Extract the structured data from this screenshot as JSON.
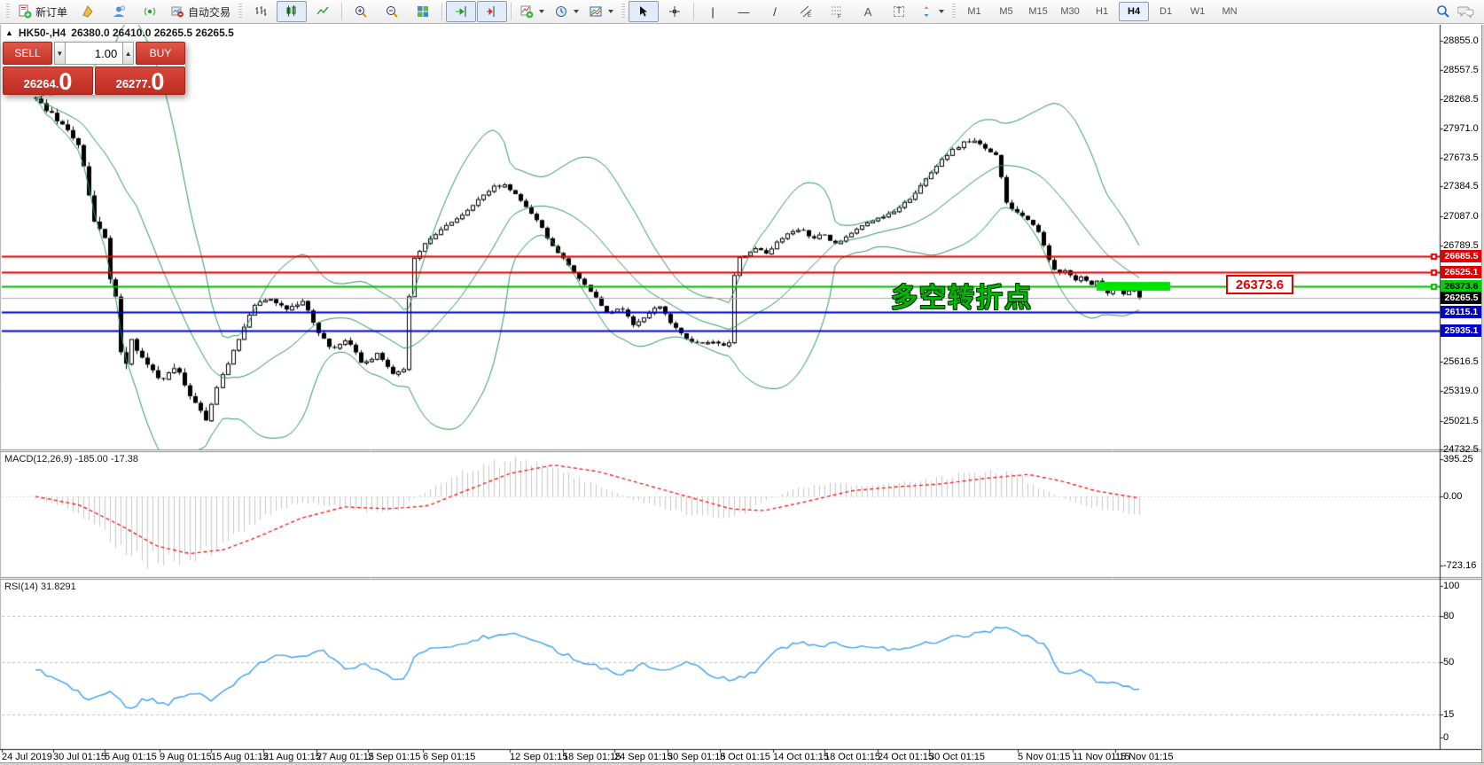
{
  "toolbar": {
    "new_order": "新订单",
    "autotrading": "自动交易",
    "timeframes": [
      "M1",
      "M5",
      "M15",
      "M30",
      "H1",
      "H4",
      "D1",
      "W1",
      "MN"
    ],
    "active_timeframe": "H4"
  },
  "trade_panel": {
    "collapse_icon": "▲",
    "sell_label": "SELL",
    "buy_label": "BUY",
    "volume": "1.00",
    "sell_price": "26264.0",
    "buy_price": "26277.0"
  },
  "chart_header": {
    "symbol": "HK50-,H4",
    "ohlc": "26380.0 26410.0 26265.5 26265.5"
  },
  "annotation": {
    "text": "多空转折点",
    "color": "#00b400"
  },
  "callout": {
    "text": "26373.6"
  },
  "price_axis": {
    "ticks": [
      "28855.0",
      "28557.5",
      "28268.5",
      "27971.0",
      "27673.5",
      "27384.5",
      "27087.0",
      "26789.5",
      "25616.5",
      "25319.0",
      "25021.5",
      "24732.5"
    ],
    "badges": [
      {
        "text": "26685.5",
        "bg": "#e00000",
        "fg": "#ffffff"
      },
      {
        "text": "26525.1",
        "bg": "#e00000",
        "fg": "#ffffff"
      },
      {
        "text": "26373.6",
        "bg": "#00ce00",
        "fg": "#000000"
      },
      {
        "text": "26265.5",
        "bg": "#000000",
        "fg": "#ffffff"
      },
      {
        "text": "26115.1",
        "bg": "#0000d0",
        "fg": "#ffffff"
      },
      {
        "text": "25935.1",
        "bg": "#0000d0",
        "fg": "#ffffff"
      }
    ]
  },
  "macd_panel": {
    "label": "MACD(12,26,9) -185.00 -17.38",
    "scale": [
      "395.25",
      "0.00",
      "-723.16"
    ]
  },
  "rsi_panel": {
    "label": "RSI(14) 31.8291",
    "scale": [
      "100",
      "80",
      "50",
      "15",
      "0"
    ]
  },
  "time_axis": {
    "labels": [
      [
        "24 Jul 2019",
        2
      ],
      [
        "30 Jul 01:15",
        60
      ],
      [
        "5 Aug 01:15",
        118
      ],
      [
        "9 Aug 01:15",
        180
      ],
      [
        "15 Aug 01:15",
        238
      ],
      [
        "21 Aug 01:15",
        297
      ],
      [
        "27 Aug 01:15",
        357
      ],
      [
        "2 Sep 01:15",
        415
      ],
      [
        "6 Sep 01:15",
        477
      ],
      [
        "12 Sep 01:15",
        575
      ],
      [
        "18 Sep 01:15",
        635
      ],
      [
        "24 Sep 01:15",
        693
      ],
      [
        "30 Sep 01:15",
        753
      ],
      [
        "8 Oct 01:15",
        812
      ],
      [
        "14 Oct 01:15",
        872
      ],
      [
        "18 Oct 01:15",
        930
      ],
      [
        "24 Oct 01:15",
        990
      ],
      [
        "30 Oct 01:15",
        1048
      ],
      [
        "5 Nov 01:15",
        1148
      ],
      [
        "11 Nov 01:15",
        1210
      ],
      [
        "15 Nov 01:15",
        1258
      ]
    ]
  },
  "chart_data": {
    "type": "candlestick",
    "symbol": "HK50-",
    "timeframe": "H4",
    "ohlc": {
      "open": 26380.0,
      "high": 26410.0,
      "low": 26265.5,
      "close": 26265.5
    },
    "bid": 26264.0,
    "ask": 26277.0,
    "y_range": [
      24732.5,
      28855.0
    ],
    "candles_count": 208,
    "levels": [
      {
        "price": 26685.5,
        "color": "#e60000",
        "width": 2,
        "marker": true
      },
      {
        "price": 26525.1,
        "color": "#e60000",
        "width": 2,
        "marker": true
      },
      {
        "price": 26373.6,
        "color": "#00bb00",
        "width": 2,
        "marker": true
      },
      {
        "price": 26265.5,
        "color": "#aaaaaa",
        "width": 1,
        "marker": false
      },
      {
        "price": 26115.1,
        "color": "#0000d8",
        "width": 2,
        "marker": false
      },
      {
        "price": 25935.1,
        "color": "#0000d8",
        "width": 2,
        "marker": false
      }
    ],
    "highlight_segment": {
      "price": 26373.6,
      "color": "#00e400"
    },
    "bollinger": {
      "period": 20,
      "deviation": 2,
      "color": "#2E9B57"
    },
    "price_waypoints": [
      [
        0,
        28260
      ],
      [
        0.014,
        28120
      ],
      [
        0.028,
        27950
      ],
      [
        0.04,
        27800
      ],
      [
        0.047,
        27350
      ],
      [
        0.054,
        27000
      ],
      [
        0.062,
        26950
      ],
      [
        0.068,
        26420
      ],
      [
        0.073,
        26240
      ],
      [
        0.079,
        25480
      ],
      [
        0.087,
        25840
      ],
      [
        0.099,
        25610
      ],
      [
        0.113,
        25430
      ],
      [
        0.127,
        25570
      ],
      [
        0.141,
        25250
      ],
      [
        0.155,
        25030
      ],
      [
        0.167,
        25440
      ],
      [
        0.181,
        25790
      ],
      [
        0.196,
        26170
      ],
      [
        0.212,
        26260
      ],
      [
        0.228,
        26150
      ],
      [
        0.243,
        26230
      ],
      [
        0.254,
        25950
      ],
      [
        0.268,
        25730
      ],
      [
        0.282,
        25860
      ],
      [
        0.296,
        25590
      ],
      [
        0.31,
        25700
      ],
      [
        0.324,
        25500
      ],
      [
        0.334,
        25560
      ],
      [
        0.34,
        26600
      ],
      [
        0.35,
        26780
      ],
      [
        0.362,
        26900
      ],
      [
        0.376,
        27020
      ],
      [
        0.39,
        27140
      ],
      [
        0.404,
        27280
      ],
      [
        0.416,
        27390
      ],
      [
        0.425,
        27400
      ],
      [
        0.435,
        27300
      ],
      [
        0.447,
        27150
      ],
      [
        0.459,
        26960
      ],
      [
        0.47,
        26760
      ],
      [
        0.482,
        26600
      ],
      [
        0.494,
        26450
      ],
      [
        0.506,
        26280
      ],
      [
        0.517,
        26100
      ],
      [
        0.529,
        26180
      ],
      [
        0.541,
        25990
      ],
      [
        0.553,
        26080
      ],
      [
        0.564,
        26190
      ],
      [
        0.576,
        25990
      ],
      [
        0.588,
        25860
      ],
      [
        0.6,
        25800
      ],
      [
        0.611,
        25830
      ],
      [
        0.623,
        25780
      ],
      [
        0.628,
        25820
      ],
      [
        0.634,
        26640
      ],
      [
        0.644,
        26700
      ],
      [
        0.654,
        26780
      ],
      [
        0.663,
        26690
      ],
      [
        0.672,
        26840
      ],
      [
        0.682,
        26920
      ],
      [
        0.694,
        26960
      ],
      [
        0.703,
        26840
      ],
      [
        0.713,
        26910
      ],
      [
        0.724,
        26800
      ],
      [
        0.735,
        26880
      ],
      [
        0.748,
        26990
      ],
      [
        0.76,
        27060
      ],
      [
        0.771,
        27100
      ],
      [
        0.782,
        27160
      ],
      [
        0.795,
        27300
      ],
      [
        0.807,
        27480
      ],
      [
        0.818,
        27610
      ],
      [
        0.829,
        27750
      ],
      [
        0.841,
        27830
      ],
      [
        0.851,
        27860
      ],
      [
        0.86,
        27760
      ],
      [
        0.87,
        27700
      ],
      [
        0.879,
        27240
      ],
      [
        0.887,
        27130
      ],
      [
        0.896,
        27060
      ],
      [
        0.904,
        26980
      ],
      [
        0.911,
        26870
      ],
      [
        0.918,
        26640
      ],
      [
        0.926,
        26500
      ],
      [
        0.934,
        26560
      ],
      [
        0.941,
        26430
      ],
      [
        0.948,
        26480
      ],
      [
        0.955,
        26370
      ],
      [
        0.962,
        26450
      ],
      [
        0.97,
        26300
      ],
      [
        0.978,
        26420
      ],
      [
        0.986,
        26280
      ],
      [
        0.993,
        26380
      ],
      [
        1,
        26265.5
      ]
    ],
    "volatility_waypoints": [
      [
        0,
        80
      ],
      [
        0.08,
        100
      ],
      [
        0.17,
        70
      ],
      [
        0.3,
        55
      ],
      [
        0.36,
        50
      ],
      [
        0.45,
        45
      ],
      [
        0.6,
        50
      ],
      [
        0.75,
        40
      ],
      [
        0.88,
        60
      ],
      [
        1,
        45
      ]
    ],
    "macd": {
      "values": {
        "macd": -185.0,
        "signal": -17.38
      },
      "range": [
        -723.16,
        395.25
      ],
      "hist_color": "#c8c8c8",
      "signal_color": "#ff0000",
      "histogram_waypoints": [
        [
          0,
          -20
        ],
        [
          0.03,
          -120
        ],
        [
          0.055,
          -300
        ],
        [
          0.075,
          -520
        ],
        [
          0.095,
          -650
        ],
        [
          0.12,
          -700
        ],
        [
          0.15,
          -620
        ],
        [
          0.18,
          -420
        ],
        [
          0.21,
          -180
        ],
        [
          0.24,
          -60
        ],
        [
          0.27,
          -100
        ],
        [
          0.3,
          -150
        ],
        [
          0.325,
          -160
        ],
        [
          0.34,
          -40
        ],
        [
          0.37,
          160
        ],
        [
          0.4,
          300
        ],
        [
          0.43,
          380
        ],
        [
          0.455,
          330
        ],
        [
          0.48,
          240
        ],
        [
          0.51,
          110
        ],
        [
          0.54,
          -30
        ],
        [
          0.57,
          -130
        ],
        [
          0.6,
          -210
        ],
        [
          0.625,
          -230
        ],
        [
          0.645,
          -150
        ],
        [
          0.665,
          -30
        ],
        [
          0.69,
          90
        ],
        [
          0.72,
          130
        ],
        [
          0.75,
          110
        ],
        [
          0.78,
          130
        ],
        [
          0.81,
          170
        ],
        [
          0.84,
          230
        ],
        [
          0.87,
          260
        ],
        [
          0.89,
          210
        ],
        [
          0.91,
          90
        ],
        [
          0.93,
          -20
        ],
        [
          0.95,
          -90
        ],
        [
          0.97,
          -140
        ],
        [
          1,
          -185
        ]
      ],
      "signal_waypoints": [
        [
          0,
          0
        ],
        [
          0.04,
          -90
        ],
        [
          0.08,
          -320
        ],
        [
          0.11,
          -520
        ],
        [
          0.14,
          -600
        ],
        [
          0.17,
          -560
        ],
        [
          0.2,
          -430
        ],
        [
          0.24,
          -230
        ],
        [
          0.28,
          -110
        ],
        [
          0.32,
          -130
        ],
        [
          0.355,
          -100
        ],
        [
          0.39,
          60
        ],
        [
          0.43,
          240
        ],
        [
          0.47,
          330
        ],
        [
          0.51,
          260
        ],
        [
          0.55,
          130
        ],
        [
          0.59,
          0
        ],
        [
          0.63,
          -130
        ],
        [
          0.66,
          -150
        ],
        [
          0.7,
          -50
        ],
        [
          0.74,
          60
        ],
        [
          0.78,
          100
        ],
        [
          0.82,
          130
        ],
        [
          0.86,
          190
        ],
        [
          0.9,
          230
        ],
        [
          0.93,
          160
        ],
        [
          0.96,
          60
        ],
        [
          1,
          -17.38
        ]
      ]
    },
    "rsi": {
      "value": 31.8291,
      "levels": [
        80,
        50,
        15
      ],
      "color": "#3da0f5",
      "waypoints": [
        [
          0,
          45
        ],
        [
          0.02,
          38
        ],
        [
          0.05,
          25
        ],
        [
          0.07,
          30
        ],
        [
          0.085,
          18
        ],
        [
          0.1,
          26
        ],
        [
          0.12,
          22
        ],
        [
          0.14,
          30
        ],
        [
          0.16,
          25
        ],
        [
          0.18,
          35
        ],
        [
          0.2,
          48
        ],
        [
          0.22,
          55
        ],
        [
          0.24,
          52
        ],
        [
          0.26,
          57
        ],
        [
          0.28,
          45
        ],
        [
          0.3,
          48
        ],
        [
          0.32,
          40
        ],
        [
          0.335,
          38
        ],
        [
          0.345,
          55
        ],
        [
          0.365,
          60
        ],
        [
          0.385,
          62
        ],
        [
          0.405,
          66
        ],
        [
          0.42,
          68
        ],
        [
          0.432,
          70
        ],
        [
          0.45,
          64
        ],
        [
          0.47,
          58
        ],
        [
          0.49,
          52
        ],
        [
          0.51,
          47
        ],
        [
          0.53,
          42
        ],
        [
          0.55,
          48
        ],
        [
          0.57,
          44
        ],
        [
          0.59,
          50
        ],
        [
          0.61,
          42
        ],
        [
          0.63,
          38
        ],
        [
          0.65,
          42
        ],
        [
          0.665,
          55
        ],
        [
          0.68,
          60
        ],
        [
          0.695,
          63
        ],
        [
          0.71,
          59
        ],
        [
          0.725,
          64
        ],
        [
          0.74,
          58
        ],
        [
          0.76,
          61
        ],
        [
          0.78,
          57
        ],
        [
          0.8,
          62
        ],
        [
          0.82,
          64
        ],
        [
          0.84,
          67
        ],
        [
          0.86,
          70
        ],
        [
          0.875,
          72
        ],
        [
          0.89,
          70
        ],
        [
          0.9,
          66
        ],
        [
          0.915,
          62
        ],
        [
          0.925,
          45
        ],
        [
          0.935,
          42
        ],
        [
          0.945,
          44
        ],
        [
          0.955,
          40
        ],
        [
          0.965,
          36
        ],
        [
          0.975,
          38
        ],
        [
          0.985,
          34
        ],
        [
          1,
          31.83
        ]
      ]
    }
  }
}
